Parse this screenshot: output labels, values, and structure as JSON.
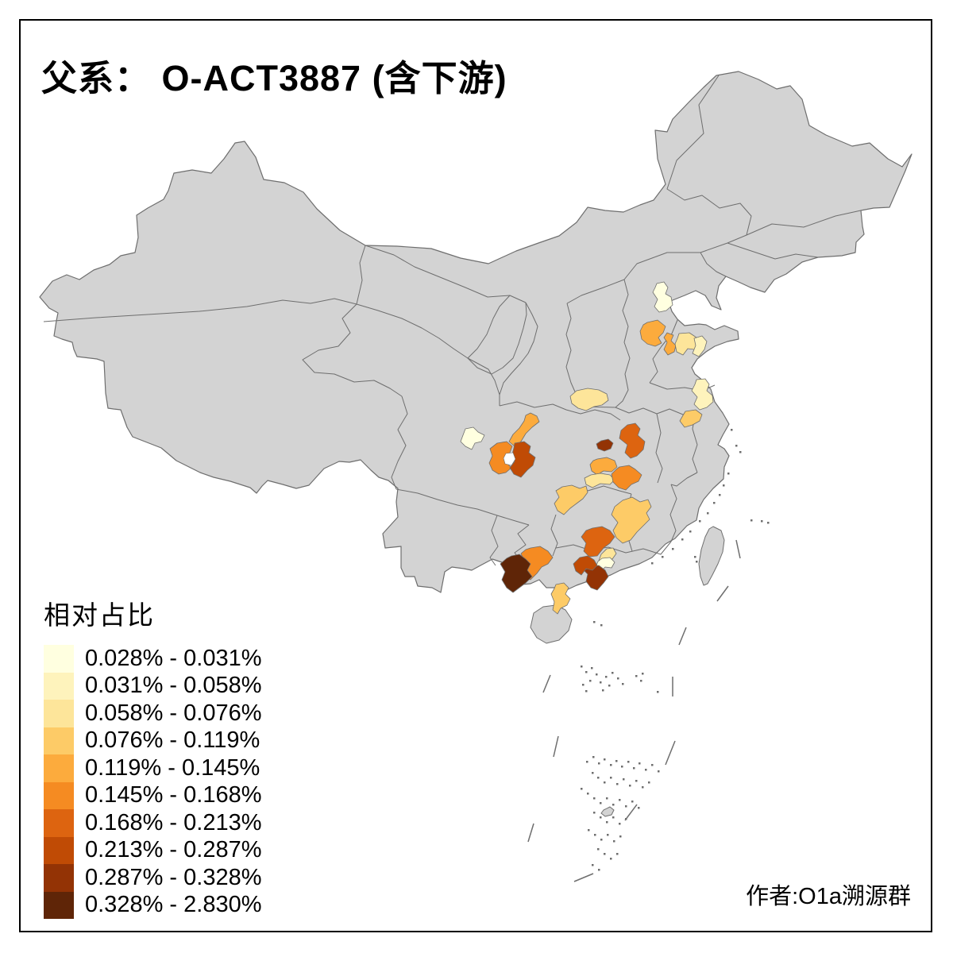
{
  "title": "父系： O-ACT3887 (含下游)",
  "attribution": "作者:O1a溯源群",
  "legend": {
    "title": "相对占比",
    "classes": [
      {
        "label": "0.028% - 0.031%",
        "color": "#FFFFE0"
      },
      {
        "label": "0.031% - 0.058%",
        "color": "#FEF3BC"
      },
      {
        "label": "0.058% - 0.076%",
        "color": "#FDE59A"
      },
      {
        "label": "0.076% - 0.119%",
        "color": "#FDCB67"
      },
      {
        "label": "0.119% - 0.145%",
        "color": "#FCAB3D"
      },
      {
        "label": "0.145% - 0.168%",
        "color": "#F58B22"
      },
      {
        "label": "0.168% - 0.213%",
        "color": "#DD6410"
      },
      {
        "label": "0.213% - 0.287%",
        "color": "#C04B05"
      },
      {
        "label": "0.287% - 0.328%",
        "color": "#933305"
      },
      {
        "label": "0.328% - 2.830%",
        "color": "#5F2507"
      }
    ]
  },
  "map": {
    "land_color": "#D3D3D3",
    "border_color": "#6E6E6E",
    "sea_color": "#FFFFFF",
    "no_data_city_color": "#FFFFFF",
    "regions": [
      {
        "id": "r01",
        "area": "beijing-area",
        "legend_class": 1
      },
      {
        "id": "r02",
        "area": "south-hebei-west",
        "legend_class": 5
      },
      {
        "id": "r03",
        "area": "south-hebei-east",
        "legend_class": 5
      },
      {
        "id": "r04",
        "area": "west-shandong",
        "legend_class": 3
      },
      {
        "id": "r05",
        "area": "central-shandong",
        "legend_class": 2
      },
      {
        "id": "r06",
        "area": "north-jiangsu",
        "legend_class": 2
      },
      {
        "id": "r07",
        "area": "central-jiangsu",
        "legend_class": 4
      },
      {
        "id": "r08",
        "area": "south-shaanxi",
        "legend_class": 3
      },
      {
        "id": "r09",
        "area": "south-henan",
        "legend_class": 7
      },
      {
        "id": "r10",
        "area": "northwest-hubei-small",
        "legend_class": 9
      },
      {
        "id": "r11",
        "area": "north-hubei",
        "legend_class": 5
      },
      {
        "id": "r12",
        "area": "central-hubei",
        "legend_class": 3
      },
      {
        "id": "r13",
        "area": "east-hubei",
        "legend_class": 6
      },
      {
        "id": "r14",
        "area": "northeast-sichuan",
        "legend_class": 5
      },
      {
        "id": "r15",
        "area": "chengdu-west",
        "legend_class": 6
      },
      {
        "id": "r16",
        "area": "chengdu-east",
        "legend_class": 8
      },
      {
        "id": "r17",
        "area": "west-sichuan",
        "legend_class": 1
      },
      {
        "id": "r18",
        "area": "chongqing-area",
        "legend_class": 4
      },
      {
        "id": "r19",
        "area": "hunan-jiangxi-border",
        "legend_class": 4
      },
      {
        "id": "r20",
        "area": "north-guangdong",
        "legend_class": 7
      },
      {
        "id": "r21",
        "area": "northeast-guangdong",
        "legend_class": 3
      },
      {
        "id": "r22",
        "area": "east-guangdong",
        "legend_class": 1
      },
      {
        "id": "r23",
        "area": "guangzhou-area",
        "legend_class": 9
      },
      {
        "id": "r24",
        "area": "west-guangdong",
        "legend_class": 8
      },
      {
        "id": "r25",
        "area": "central-guangxi",
        "legend_class": 6
      },
      {
        "id": "r26",
        "area": "west-guangxi",
        "legend_class": 10
      },
      {
        "id": "r27",
        "area": "leizhou-peninsula",
        "legend_class": 4
      }
    ]
  }
}
